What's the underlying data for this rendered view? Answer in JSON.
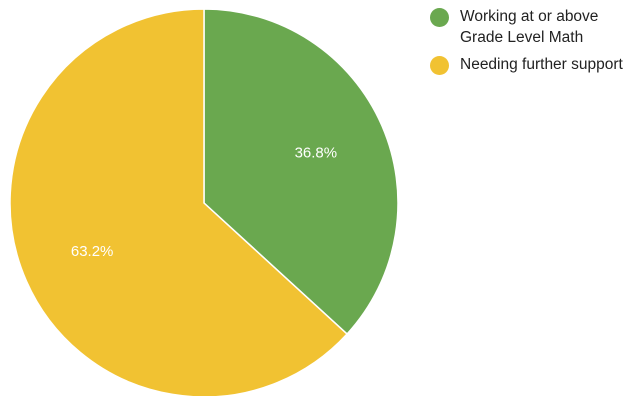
{
  "chart_data": {
    "type": "pie",
    "title": "",
    "slices": [
      {
        "label": "Working at or above Grade Level Math",
        "value": 36.8,
        "display": "36.8%",
        "color": "#6aa84f"
      },
      {
        "label": "Needing further support",
        "value": 63.2,
        "display": "63.2%",
        "color": "#f1c232"
      }
    ],
    "legend_position": "top-right",
    "start_angle": "top",
    "direction": "clockwise"
  }
}
